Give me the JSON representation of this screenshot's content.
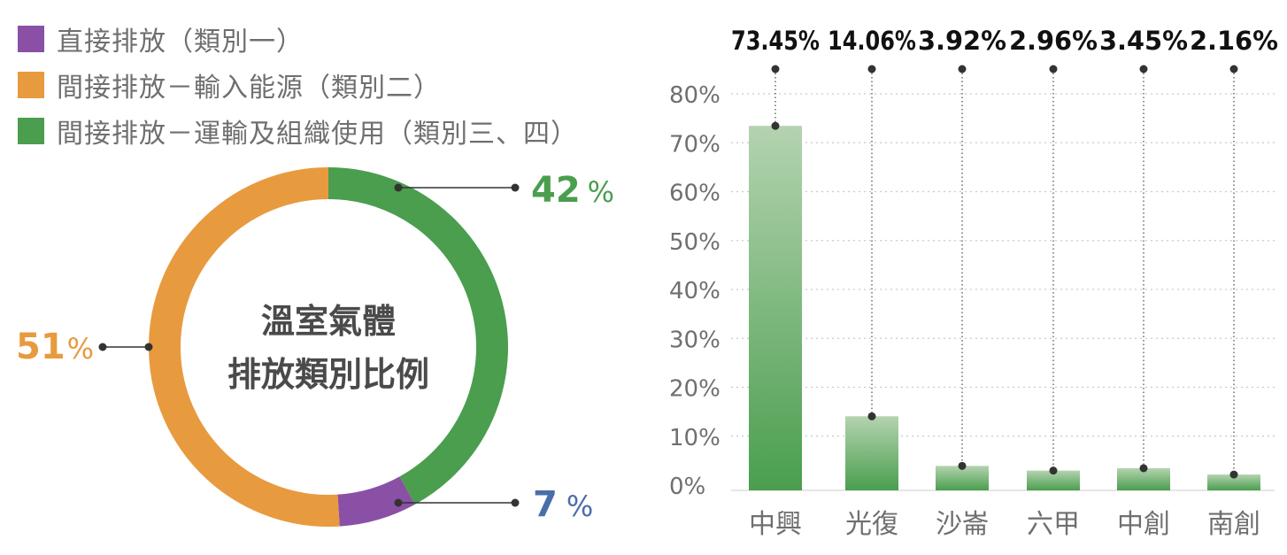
{
  "colors": {
    "direct": "#8a50a6",
    "energy": "#e89a3f",
    "transport": "#4a9e4e",
    "text_gray": "#6f6f6f",
    "grid": "#c9c9c9",
    "percent_blue": "#4a6ea8",
    "bar_top": "#b4d3b0",
    "bar_bottom": "#4a9e4e"
  },
  "legend": [
    {
      "label": "直接排放（類別一）",
      "color_key": "direct"
    },
    {
      "label": "間接排放－輸入能源（類別二）",
      "color_key": "energy"
    },
    {
      "label": "間接排放－運輸及組織使用（類別三、四）",
      "color_key": "transport"
    }
  ],
  "donut": {
    "center_lines": [
      "溫室氣體",
      "排放類別比例"
    ],
    "callouts": {
      "transport": {
        "value": "42",
        "unit": "%"
      },
      "energy": {
        "value": "51",
        "unit": "%"
      },
      "direct": {
        "value": "7",
        "unit": "%"
      }
    }
  },
  "chart_data": [
    {
      "type": "pie",
      "style": "donut",
      "categories": [
        "直接排放（類別一）",
        "間接排放－輸入能源（類別二）",
        "間接排放－運輸及組織使用（類別三、四）"
      ],
      "values": [
        7,
        51,
        42
      ],
      "unit": "%"
    },
    {
      "type": "bar",
      "categories": [
        "中興",
        "光復",
        "沙崙",
        "六甲",
        "中創",
        "南創"
      ],
      "values": [
        73.45,
        14.06,
        3.92,
        2.96,
        3.45,
        2.16
      ],
      "value_labels": [
        "73.45%",
        "14.06%",
        "3.92%",
        "2.96%",
        "3.45%",
        "2.16%"
      ],
      "yticks": [
        "0%",
        "10%",
        "20%",
        "30%",
        "40%",
        "50%",
        "60%",
        "70%",
        "80%"
      ],
      "ylim": [
        0,
        80
      ],
      "grid": true,
      "xlabel": "",
      "ylabel": ""
    }
  ]
}
